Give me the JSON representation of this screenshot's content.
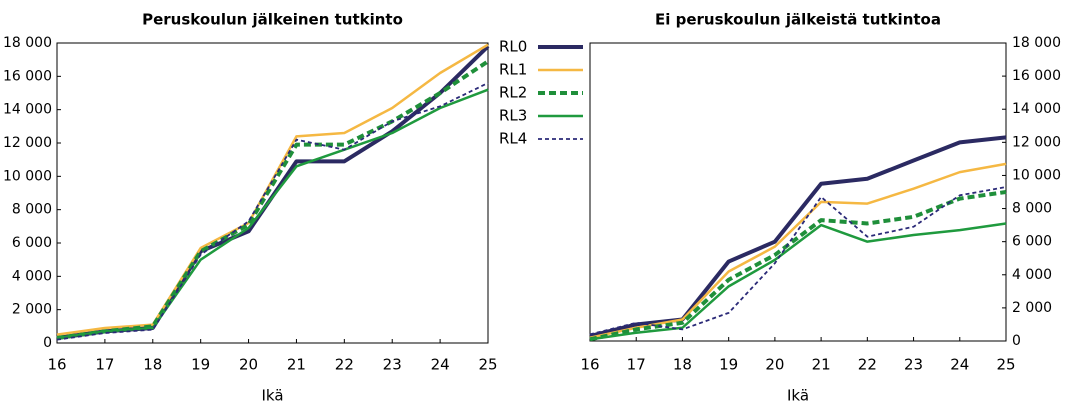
{
  "chart_data": [
    {
      "type": "line",
      "title": "Peruskoulun jälkeinen tutkinto",
      "xlabel": "Ikä",
      "x": [
        16,
        17,
        18,
        19,
        20,
        21,
        22,
        23,
        24,
        25
      ],
      "xlim": [
        16,
        25
      ],
      "xticks": [
        16,
        17,
        18,
        19,
        20,
        21,
        22,
        23,
        24,
        25
      ],
      "ylim": [
        0,
        18000
      ],
      "yaxis": "left",
      "yticks": [
        0,
        {
          "value": 2000,
          "label": "2 000"
        },
        {
          "value": 4000,
          "label": "4 000"
        },
        {
          "value": 6000,
          "label": "6 000"
        },
        {
          "value": 8000,
          "label": "8 000"
        },
        {
          "value": 10000,
          "label": "10 000"
        },
        {
          "value": 12000,
          "label": "12 000"
        },
        {
          "value": 14000,
          "label": "14 000"
        },
        {
          "value": 16000,
          "label": "16 000"
        },
        {
          "value": 18000,
          "label": "18 000"
        }
      ],
      "series": [
        {
          "name": "RL0",
          "color": "#2b2a62",
          "dashed": false,
          "line_width": 4,
          "values": [
            300,
            700,
            900,
            5500,
            6700,
            10900,
            10900,
            12700,
            15000,
            17800
          ]
        },
        {
          "name": "RL1",
          "color": "#f5b843",
          "dashed": false,
          "line_width": 2.5,
          "values": [
            500,
            900,
            1100,
            5700,
            7200,
            12400,
            12600,
            14100,
            16200,
            17900
          ]
        },
        {
          "name": "RL2",
          "color": "#1f8f3a",
          "dashed": true,
          "line_width": 4,
          "values": [
            300,
            700,
            1000,
            5500,
            7100,
            11900,
            11900,
            13300,
            15000,
            16900
          ]
        },
        {
          "name": "RL3",
          "color": "#1f9a3e",
          "dashed": false,
          "line_width": 2.5,
          "values": [
            300,
            700,
            900,
            5000,
            6900,
            10600,
            11600,
            12600,
            14100,
            15200
          ]
        },
        {
          "name": "RL4",
          "color": "#2b2a78",
          "dashed": true,
          "line_width": 1.8,
          "values": [
            200,
            600,
            800,
            5300,
            7300,
            12200,
            11600,
            13300,
            14200,
            15600
          ]
        }
      ]
    },
    {
      "type": "line",
      "title": "Ei peruskoulun jälkeistä tutkintoa",
      "xlabel": "Ikä",
      "x": [
        16,
        17,
        18,
        19,
        20,
        21,
        22,
        23,
        24,
        25
      ],
      "xlim": [
        16,
        25
      ],
      "xticks": [
        16,
        17,
        18,
        19,
        20,
        21,
        22,
        23,
        24,
        25
      ],
      "ylim": [
        0,
        18000
      ],
      "yaxis": "right",
      "yticks": [
        0,
        {
          "value": 2000,
          "label": "2 000"
        },
        {
          "value": 4000,
          "label": "4 000"
        },
        {
          "value": 6000,
          "label": "6 000"
        },
        {
          "value": 8000,
          "label": "8 000"
        },
        {
          "value": 10000,
          "label": "10 000"
        },
        {
          "value": 12000,
          "label": "12 000"
        },
        {
          "value": 14000,
          "label": "14 000"
        },
        {
          "value": 16000,
          "label": "16 000"
        },
        {
          "value": 18000,
          "label": "18 000"
        }
      ],
      "series": [
        {
          "color": "#2b2a62",
          "dashed": false,
          "line_width": 4,
          "values": [
            300,
            1000,
            1300,
            4800,
            6000,
            9500,
            9800,
            10900,
            12000,
            12300
          ]
        },
        {
          "color": "#f5b843",
          "dashed": false,
          "line_width": 2.5,
          "values": [
            200,
            800,
            1300,
            4200,
            5700,
            8400,
            8300,
            9200,
            10200,
            10700
          ]
        },
        {
          "color": "#1f8f3a",
          "dashed": true,
          "line_width": 4,
          "values": [
            100,
            700,
            1100,
            3700,
            5200,
            7300,
            7100,
            7500,
            8600,
            9000
          ]
        },
        {
          "color": "#1f9a3e",
          "dashed": false,
          "line_width": 2.5,
          "values": [
            100,
            500,
            800,
            3300,
            4900,
            7000,
            6000,
            6400,
            6700,
            7100
          ]
        },
        {
          "color": "#2b2a78",
          "dashed": true,
          "line_width": 1.8,
          "values": [
            400,
            1100,
            700,
            1700,
            4700,
            8700,
            6300,
            6900,
            8800,
            9300
          ]
        }
      ]
    }
  ]
}
